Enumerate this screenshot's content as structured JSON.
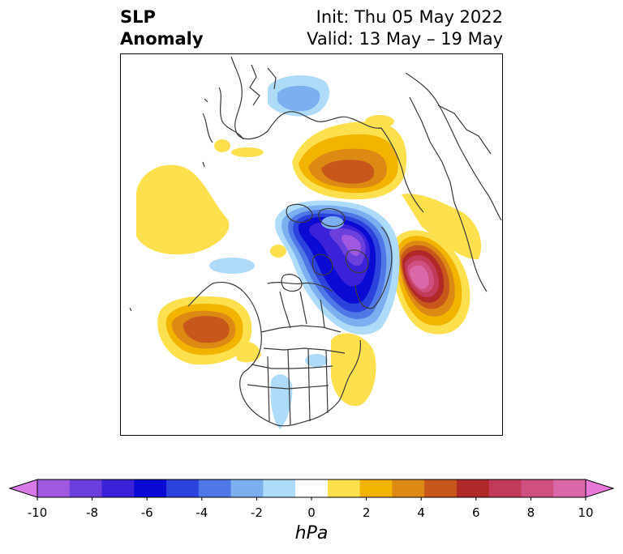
{
  "header": {
    "variable_line1": "SLP",
    "variable_line2": "Anomaly",
    "init_label": "Init: Thu 05 May 2022",
    "valid_label": "Valid: 13 May – 19 May"
  },
  "colorbar": {
    "units": "hPa",
    "ticks": [
      "-10",
      "-8",
      "-6",
      "-4",
      "-2",
      "0",
      "2",
      "4",
      "6",
      "8",
      "10"
    ],
    "extend": "both",
    "colors": [
      "#d87ae8",
      "#a058e0",
      "#6b3fdb",
      "#3b22d8",
      "#0a0ad2",
      "#2b43dc",
      "#4f78e6",
      "#7bafef",
      "#aedcf8",
      "#ffffff",
      "#fde04e",
      "#f2b400",
      "#dc8a14",
      "#c8571c",
      "#b02828",
      "#c23a5a",
      "#cf5080",
      "#db68a8",
      "#e878d8"
    ]
  },
  "map": {
    "projection": "north-polar stereographic",
    "domain": "Northern Hemisphere",
    "features": [
      "coastlines",
      "country borders",
      "US state borders",
      "Canadian province borders"
    ]
  }
}
